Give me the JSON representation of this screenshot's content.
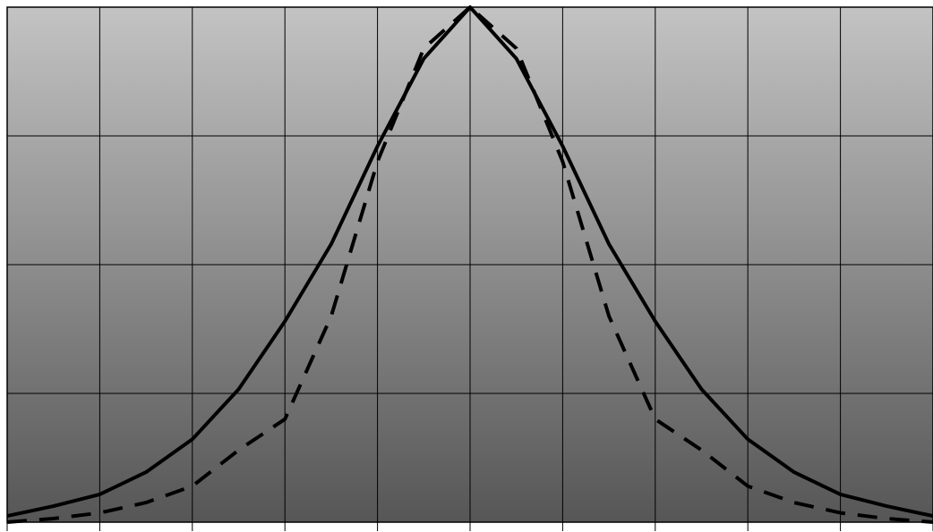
{
  "chart_data": {
    "type": "line",
    "title": "",
    "xlabel": "",
    "ylabel": "",
    "xlim": [
      -5,
      5
    ],
    "ylim": [
      0,
      1
    ],
    "grid": true,
    "x_gridlines": [
      -5,
      -4,
      -3,
      -2,
      -1,
      0,
      1,
      2,
      3,
      4,
      5
    ],
    "y_gridlines": [
      0,
      0.25,
      0.5,
      0.75,
      1
    ],
    "background_gradient": [
      "#c3c3c3",
      "#565656"
    ],
    "series": [
      {
        "style": "solid",
        "color": "#000000",
        "x": [
          -5,
          -4.5,
          -4,
          -3.5,
          -3,
          -2.5,
          -2,
          -1.5,
          -1,
          -0.5,
          0,
          0.5,
          1,
          1.5,
          2,
          2.5,
          3,
          3.5,
          4,
          4.5,
          5
        ],
        "values": [
          0.012,
          0.031,
          0.054,
          0.097,
          0.161,
          0.258,
          0.39,
          0.54,
          0.73,
          0.9,
          1.0,
          0.9,
          0.73,
          0.54,
          0.39,
          0.258,
          0.161,
          0.097,
          0.054,
          0.031,
          0.012
        ]
      },
      {
        "style": "dashed",
        "color": "#000000",
        "x": [
          -5,
          -4.5,
          -4,
          -3.5,
          -3,
          -2.5,
          -2,
          -1.5,
          -1,
          -0.5,
          0,
          0.5,
          1,
          1.5,
          2,
          2.5,
          3,
          3.5,
          4,
          4.5,
          5
        ],
        "values": [
          0.0,
          0.007,
          0.018,
          0.038,
          0.07,
          0.14,
          0.2,
          0.4,
          0.7,
          0.92,
          1.0,
          0.92,
          0.7,
          0.4,
          0.2,
          0.14,
          0.07,
          0.038,
          0.018,
          0.007,
          0.0
        ]
      }
    ]
  }
}
